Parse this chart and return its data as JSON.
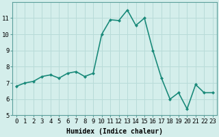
{
  "x": [
    0,
    1,
    2,
    3,
    4,
    5,
    6,
    7,
    8,
    9,
    10,
    11,
    12,
    13,
    14,
    15,
    16,
    17,
    18,
    19,
    20,
    21,
    22,
    23
  ],
  "y": [
    6.8,
    7.0,
    7.1,
    7.4,
    7.5,
    7.3,
    7.6,
    7.7,
    7.4,
    7.6,
    10.0,
    10.9,
    10.85,
    11.5,
    10.55,
    11.0,
    9.0,
    7.3,
    6.0,
    6.4,
    5.4,
    6.9,
    6.4,
    6.4
  ],
  "line_color": "#1a8a7a",
  "marker": "D",
  "marker_size": 2,
  "bg_color": "#d4eeeb",
  "grid_color": "#b8dbd8",
  "xlabel": "Humidex (Indice chaleur)",
  "ylim": [
    5,
    12
  ],
  "xlim": [
    -0.5,
    23.5
  ],
  "yticks": [
    5,
    6,
    7,
    8,
    9,
    10,
    11
  ],
  "xticks": [
    0,
    1,
    2,
    3,
    4,
    5,
    6,
    7,
    8,
    9,
    10,
    11,
    12,
    13,
    14,
    15,
    16,
    17,
    18,
    19,
    20,
    21,
    22,
    23
  ],
  "xlabel_fontsize": 7,
  "tick_fontsize": 6.5,
  "line_width": 1.2
}
